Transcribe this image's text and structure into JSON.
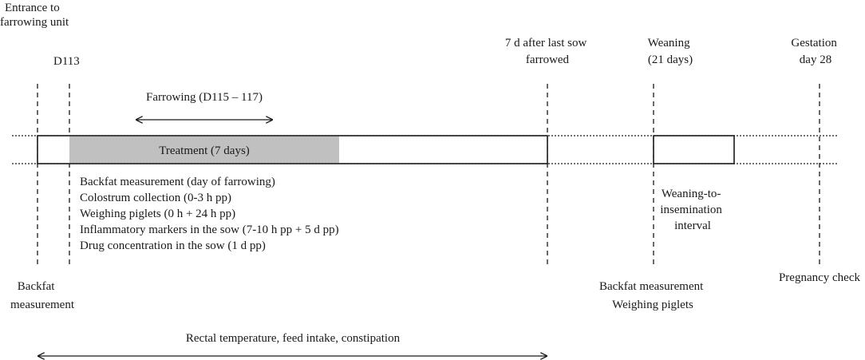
{
  "top_labels": {
    "entrance": [
      "Entrance to",
      "farrowing unit"
    ],
    "d113": "D113",
    "seven_days": [
      "7 d after last sow",
      "farrowed"
    ],
    "weaning": [
      "Weaning",
      "(21 days)"
    ],
    "gestation": [
      "Gestation",
      "day 28"
    ]
  },
  "farrowing_label": "Farrowing (D115 – 117)",
  "treatment_label": "Treatment (7 days)",
  "measurements_list": [
    "Backfat measurement (day of farrowing)",
    "Colostrum collection (0-3 h pp)",
    "Weighing piglets (0 h + 24 h pp)",
    "Inflammatory markers in the sow (7-10 h pp + 5 d pp)",
    "Drug concentration in the sow (1 d pp)"
  ],
  "weaning_interval": [
    "Weaning-to-",
    "insemination",
    "interval"
  ],
  "bottom_labels": {
    "backfat": [
      "Backfat",
      "measurement"
    ],
    "weaning_measurements": [
      "Backfat measurement",
      "Weighing piglets"
    ],
    "pregnancy": "Pregnancy check"
  },
  "rectal_label": "Rectal temperature, feed intake, constipation",
  "colors": {
    "treatment_fill": "#c0c0c0",
    "line": "#1a1a1a"
  }
}
